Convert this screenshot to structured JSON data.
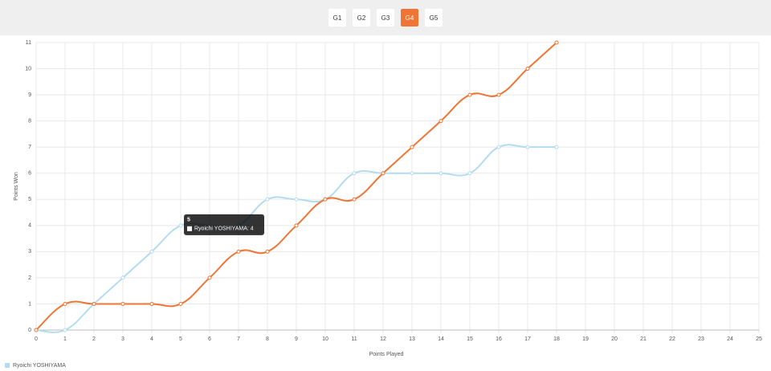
{
  "tabs": [
    "G1",
    "G2",
    "G3",
    "G4",
    "G5"
  ],
  "active_tab": "G4",
  "chart_data": {
    "type": "line",
    "x_label": "Points Played",
    "y_label": "Points Won",
    "x": [
      0,
      1,
      2,
      3,
      4,
      5,
      6,
      7,
      8,
      9,
      10,
      11,
      12,
      13,
      14,
      15,
      16,
      17,
      18
    ],
    "series": [
      {
        "name": "Ryoichi YOSHIYAMA",
        "color": "#b3dcf2",
        "values": [
          0,
          0,
          1,
          2,
          3,
          4,
          4,
          4,
          5,
          5,
          5,
          6,
          6,
          6,
          6,
          6,
          7,
          7,
          7
        ]
      },
      {
        "color": "#f07534",
        "values": [
          0,
          1,
          1,
          1,
          1,
          1,
          2,
          3,
          3,
          4,
          5,
          5,
          6,
          7,
          8,
          9,
          9,
          10,
          11
        ]
      }
    ],
    "xlim": [
      0,
      25
    ],
    "xticks": [
      0,
      1,
      2,
      3,
      4,
      5,
      6,
      7,
      8,
      9,
      10,
      11,
      12,
      13,
      14,
      15,
      16,
      17,
      18,
      19,
      20,
      21,
      22,
      23,
      24,
      25
    ],
    "ylim": [
      0,
      11
    ],
    "yticks": [
      0,
      1,
      2,
      3,
      4,
      5,
      6,
      7,
      8,
      9,
      10,
      11
    ],
    "grid": true,
    "tooltip": {
      "title": "5",
      "label": "Ryoichi YOSHIYAMA: 4"
    }
  }
}
